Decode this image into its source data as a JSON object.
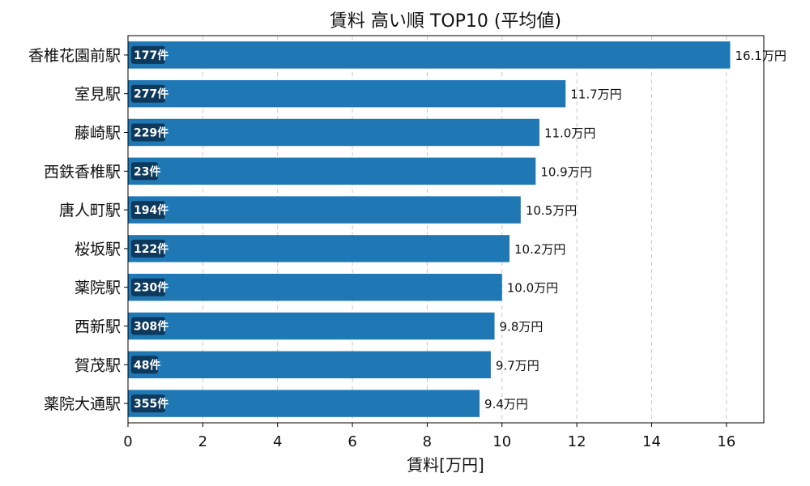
{
  "chart_data": {
    "type": "bar",
    "orientation": "horizontal",
    "title": "賃料 高い順 TOP10 (平均値)",
    "xlabel": "賃料[万円]",
    "ylabel": "",
    "xlim": [
      0,
      17
    ],
    "xticks": [
      0,
      2,
      4,
      6,
      8,
      10,
      12,
      14,
      16
    ],
    "grid": "x-dashed",
    "bar_color": "#1f77b4",
    "badge_color": "#0d3a5c",
    "categories": [
      "香椎花園前駅",
      "室見駅",
      "藤崎駅",
      "西鉄香椎駅",
      "唐人町駅",
      "桜坂駅",
      "薬院駅",
      "西新駅",
      "賀茂駅",
      "薬院大通駅"
    ],
    "values": [
      16.1,
      11.7,
      11.0,
      10.9,
      10.5,
      10.2,
      10.0,
      9.8,
      9.7,
      9.4
    ],
    "value_labels": [
      "16.1万円",
      "11.7万円",
      "11.0万円",
      "10.9万円",
      "10.5万円",
      "10.2万円",
      "10.0万円",
      "9.8万円",
      "9.7万円",
      "9.4万円"
    ],
    "counts": [
      "177件",
      "277件",
      "229件",
      "23件",
      "194件",
      "122件",
      "230件",
      "308件",
      "48件",
      "355件"
    ]
  }
}
